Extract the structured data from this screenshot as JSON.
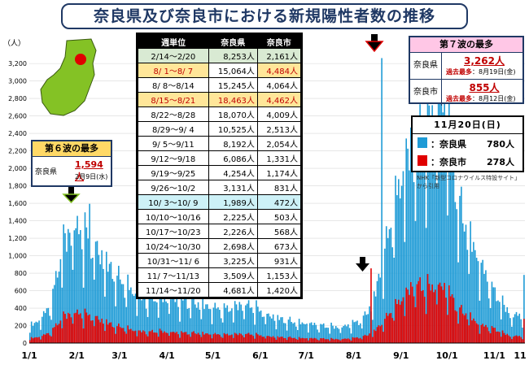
{
  "title": "奈良県及び奈良市における新規陽性者数の推移",
  "colors": {
    "prefecture": "#1e9bd6",
    "city": "#e00000",
    "map_fill": "#84c225",
    "table_header": "#000000"
  },
  "table": {
    "headers": [
      "週単位",
      "奈良県",
      "奈良市"
    ],
    "rows": [
      {
        "week": "2/14～2/20",
        "pref": "8,253人",
        "city": "2,161人",
        "hl": "green"
      },
      {
        "week": "8/ 1～8/ 7",
        "pref": "15,064人",
        "city": "4,484人",
        "hl": "orange-city"
      },
      {
        "week": "8/ 8～8/14",
        "pref": "15,245人",
        "city": "4,064人",
        "hl": ""
      },
      {
        "week": "8/15～8/21",
        "pref": "18,463人",
        "city": "4,462人",
        "hl": "orange-pref"
      },
      {
        "week": "8/22～8/28",
        "pref": "18,070人",
        "city": "4,009人",
        "hl": ""
      },
      {
        "week": "8/29～9/ 4",
        "pref": "10,525人",
        "city": "2,513人",
        "hl": ""
      },
      {
        "week": "9/ 5～9/11",
        "pref": "8,192人",
        "city": "2,054人",
        "hl": ""
      },
      {
        "week": "9/12～9/18",
        "pref": "6,086人",
        "city": "1,331人",
        "hl": ""
      },
      {
        "week": "9/19～9/25",
        "pref": "4,254人",
        "city": "1,174人",
        "hl": ""
      },
      {
        "week": "9/26～10/2",
        "pref": "3,131人",
        "city": "831人",
        "hl": ""
      },
      {
        "week": "10/ 3～10/ 9",
        "pref": "1,989人",
        "city": "472人",
        "hl": "cyan"
      },
      {
        "week": "10/10～10/16",
        "pref": "2,225人",
        "city": "503人",
        "hl": ""
      },
      {
        "week": "10/17～10/23",
        "pref": "2,226人",
        "city": "568人",
        "hl": ""
      },
      {
        "week": "10/24～10/30",
        "pref": "2,698人",
        "city": "673人",
        "hl": ""
      },
      {
        "week": "10/31～11/ 6",
        "pref": "3,225人",
        "city": "931人",
        "hl": ""
      },
      {
        "week": "11/ 7～11/13",
        "pref": "3,509人",
        "city": "1,153人",
        "hl": ""
      },
      {
        "week": "11/14～11/20",
        "pref": "4,681人",
        "city": "1,420人",
        "hl": ""
      }
    ]
  },
  "wave6": {
    "title": "第６波の最多",
    "pref_label": "奈良県",
    "value": "1,594人",
    "date": "2月9日(水)"
  },
  "wave7": {
    "title": "第７波の最多",
    "rows": [
      {
        "label": "奈良県",
        "value": "3,262人",
        "prev_kw": "過去最多",
        "prev_date": "：8月19日(金)"
      },
      {
        "label": "奈良市",
        "value": "855人",
        "prev_kw": "過去最多",
        "prev_date": "：8月12日(金)"
      }
    ]
  },
  "today": {
    "title": "11月20日(日)",
    "rows": [
      {
        "name": "：奈良県",
        "count": "780人"
      },
      {
        "name": "：奈良市",
        "count": "278人"
      }
    ]
  },
  "source": [
    "NHK「新型コロナウイルス特設サイト」",
    "から引用"
  ],
  "chart_data": {
    "type": "bar",
    "unit_label": "（人）",
    "y_ticks": [
      "0",
      "200",
      "400",
      "600",
      "800",
      "1,000",
      "1,200",
      "1,400",
      "1,600",
      "1,800",
      "2,000",
      "2,200",
      "2,400",
      "2,600",
      "2,800",
      "3,000",
      "3,200"
    ],
    "ylim": [
      0,
      3350
    ],
    "x_ticks": [
      {
        "label": "1/1",
        "day": 0
      },
      {
        "label": "2/1",
        "day": 31
      },
      {
        "label": "3/1",
        "day": 59
      },
      {
        "label": "4/1",
        "day": 90
      },
      {
        "label": "5/1",
        "day": 120
      },
      {
        "label": "6/1",
        "day": 151
      },
      {
        "label": "7/1",
        "day": 181
      },
      {
        "label": "8/1",
        "day": 212
      },
      {
        "label": "9/1",
        "day": 243
      },
      {
        "label": "10/1",
        "day": 273
      },
      {
        "label": "11/1",
        "day": 304
      },
      {
        "label": "11",
        "day": 323
      }
    ],
    "series": [
      {
        "name": "奈良県",
        "weekly_values": [
          180,
          260,
          420,
          1050,
          1250,
          1180,
          1050,
          880,
          720,
          620,
          520,
          470,
          500,
          480,
          450,
          440,
          420,
          380,
          360,
          390,
          420,
          380,
          310,
          270,
          240,
          220,
          210,
          190,
          180,
          170,
          200,
          250,
          420,
          900,
          1450,
          1950,
          2180,
          2300,
          2640,
          2580,
          1500,
          1170,
          870,
          610,
          450,
          285,
          320,
          320,
          385,
          460,
          500,
          670
        ],
        "anchors": [
          {
            "day": 39,
            "value": 1594
          },
          {
            "day": 230,
            "value": 3262
          },
          {
            "day": 323,
            "value": 780
          }
        ]
      },
      {
        "name": "奈良市",
        "weekly_values": [
          50,
          70,
          120,
          280,
          330,
          310,
          280,
          230,
          180,
          160,
          130,
          120,
          125,
          120,
          110,
          110,
          105,
          95,
          90,
          95,
          100,
          90,
          75,
          65,
          60,
          55,
          52,
          48,
          45,
          42,
          50,
          65,
          110,
          230,
          380,
          520,
          640,
          580,
          640,
          570,
          360,
          300,
          190,
          170,
          120,
          70,
          80,
          80,
          96,
          135,
          165,
          203
        ],
        "anchors": [
          {
            "day": 223,
            "value": 855
          },
          {
            "day": 323,
            "value": 278
          }
        ]
      }
    ]
  }
}
